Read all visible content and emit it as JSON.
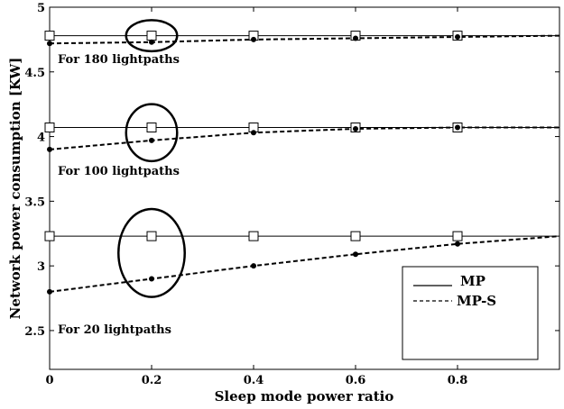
{
  "chart_data": {
    "type": "line",
    "xlabel": "Sleep mode power ratio",
    "ylabel": "Network power consumption [KW]",
    "xlim": [
      0,
      1
    ],
    "ylim": [
      2.2,
      5
    ],
    "x_ticks": [
      0,
      0.2,
      0.4,
      0.6,
      0.8
    ],
    "x_tick_labels": [
      "0",
      "0.2",
      "0.4",
      "0.6",
      "0.8"
    ],
    "y_ticks": [
      2.5,
      3,
      3.5,
      4,
      4.5,
      5
    ],
    "y_tick_labels": [
      "2.5",
      "3",
      "3.5",
      "4",
      "4.5",
      "5"
    ],
    "grid": false,
    "legend_position": "bottom-right",
    "legend": [
      {
        "label": "MP",
        "style": "solid"
      },
      {
        "label": "MP-S",
        "style": "dashed"
      }
    ],
    "groups": [
      {
        "annotation": "For 180 lightpaths",
        "x": [
          0,
          0.2,
          0.4,
          0.6,
          0.8,
          1.0
        ],
        "series": [
          {
            "name": "MP",
            "style": "solid",
            "marker": "square",
            "values": [
              4.78,
              4.78,
              4.78,
              4.78,
              4.78,
              4.78
            ]
          },
          {
            "name": "MP-S",
            "style": "dashed",
            "marker": "dot",
            "values": [
              4.72,
              4.73,
              4.75,
              4.76,
              4.77,
              4.78
            ]
          }
        ]
      },
      {
        "annotation": "For 100 lightpaths",
        "x": [
          0,
          0.2,
          0.4,
          0.6,
          0.8,
          1.0
        ],
        "series": [
          {
            "name": "MP",
            "style": "solid",
            "marker": "square",
            "values": [
              4.07,
              4.07,
              4.07,
              4.07,
              4.07,
              4.07
            ]
          },
          {
            "name": "MP-S",
            "style": "dashed",
            "marker": "dot",
            "values": [
              3.9,
              3.97,
              4.03,
              4.06,
              4.07,
              4.07
            ]
          }
        ]
      },
      {
        "annotation": "For 20 lightpaths",
        "x": [
          0,
          0.2,
          0.4,
          0.6,
          0.8,
          1.0
        ],
        "series": [
          {
            "name": "MP",
            "style": "solid",
            "marker": "square",
            "values": [
              3.23,
              3.23,
              3.23,
              3.23,
              3.23,
              3.23
            ]
          },
          {
            "name": "MP-S",
            "style": "dashed",
            "marker": "dot",
            "values": [
              2.8,
              2.9,
              3.0,
              3.09,
              3.17,
              3.23
            ]
          }
        ]
      }
    ],
    "ellipses": [
      {
        "x": 0.2,
        "y": 4.78,
        "rx_data": 0.05,
        "ry_data": 0.12
      },
      {
        "x": 0.2,
        "y": 4.03,
        "rx_data": 0.05,
        "ry_data": 0.22
      },
      {
        "x": 0.2,
        "y": 3.1,
        "rx_data": 0.065,
        "ry_data": 0.34
      }
    ]
  }
}
